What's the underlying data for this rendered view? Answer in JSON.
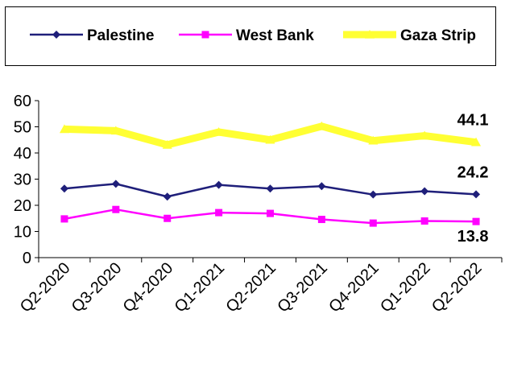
{
  "chart_data": {
    "type": "line",
    "categories": [
      "Q2-2020",
      "Q3-2020",
      "Q4-2020",
      "Q1-2021",
      "Q2-2021",
      "Q3-2021",
      "Q4-2021",
      "Q1-2022",
      "Q2-2022"
    ],
    "ylim": [
      0,
      60
    ],
    "yticks": [
      "0",
      "10",
      "20",
      "30",
      "40",
      "50",
      "60"
    ],
    "grid": false,
    "legend_position": "top",
    "series": [
      {
        "name": "Palestine",
        "color": "#1F1F7A",
        "marker": "diamond",
        "values": [
          26.4,
          28.2,
          23.3,
          27.8,
          26.4,
          27.3,
          24.1,
          25.4,
          24.2
        ],
        "end_label": "24.2"
      },
      {
        "name": "West Bank",
        "color": "#FF00FF",
        "marker": "square",
        "values": [
          14.8,
          18.4,
          15.0,
          17.2,
          16.9,
          14.6,
          13.2,
          14.0,
          13.8
        ],
        "end_label": "13.8"
      },
      {
        "name": "Gaza Strip",
        "color": "#FFFF33",
        "marker": "triangle",
        "values": [
          49.1,
          48.5,
          43.1,
          48.0,
          45.0,
          50.2,
          44.7,
          46.6,
          44.1
        ],
        "end_label": "44.1"
      }
    ]
  }
}
